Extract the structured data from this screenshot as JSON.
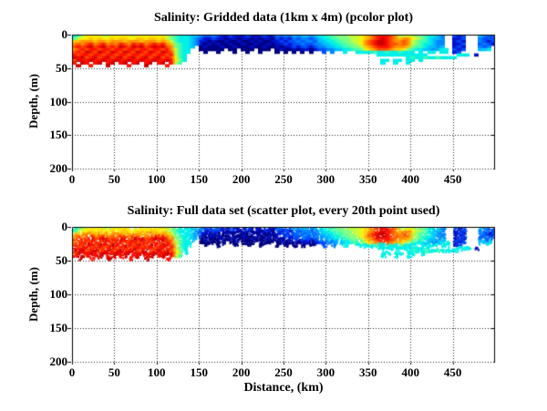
{
  "chart_data": [
    {
      "type": "heatmap",
      "render": "pcolor",
      "title": "Salinity: Gridded data (1km x 4m) (pcolor plot)",
      "xlabel": "",
      "ylabel": "Depth, (m)",
      "xlim": [
        0,
        500
      ],
      "ylim": [
        0,
        200
      ],
      "y_axis_direction": "reverse",
      "xticks": [
        0,
        50,
        100,
        150,
        200,
        250,
        300,
        350,
        400,
        450
      ],
      "yticks": [
        0,
        50,
        100,
        150,
        200
      ],
      "grid": "dotted",
      "legend": "none",
      "colormap": "jet",
      "field": "salinity_field"
    },
    {
      "type": "scatter",
      "render": "scatter",
      "title": "Salinity: Full data set (scatter plot, every 20th point used)",
      "xlabel": "Distance, (km)",
      "ylabel": "Depth, (m)",
      "xlim": [
        0,
        500
      ],
      "ylim": [
        0,
        200
      ],
      "y_axis_direction": "reverse",
      "xticks": [
        0,
        50,
        100,
        150,
        200,
        250,
        300,
        350,
        400,
        450
      ],
      "yticks": [
        0,
        50,
        100,
        150,
        200
      ],
      "grid": "dotted",
      "legend": "none",
      "colormap": "jet",
      "field": "salinity_field"
    }
  ],
  "salinity_field": {
    "description": "Jet-colormapped salinity section shared by both subplots; one letter per 5 km x 4 m cell, '.' = no data (white)",
    "x_start_km": 0,
    "x_bin_km": 5,
    "depth_start_m": 0,
    "depth_bin_m": 4,
    "no_data": ".",
    "palette": {
      "a": "#000080",
      "b": "#0013CC",
      "c": "#0050FF",
      "d": "#0087FF",
      "e": "#00C0FF",
      "f": "#00F0E8",
      "g": "#40FFB0",
      "h": "#80FF80",
      "i": "#C8FF38",
      "j": "#FFF000",
      "k": "#FFC400",
      "l": "#FF9000",
      "m": "#FF5000",
      "n": "#FF1000",
      "o": "#CC0000"
    },
    "rows": [
      "fgijjjjiijjjjjijjjjjjjihgfffeedccdcbbcbbbcbbbcbbdcdcedeedeffgghhhiiijklmnnnmliijihhgffed..cbc...edcc",
      "gijjkjkjjkjkkjjkkjkkjkihgfffedcbbcbbabbabbababbacbcbdcddcdeffgghhhiijklmnonmlklljihgfeed..bbc...dccc",
      "kklllkllklllklllklllklkigfffedbbabaabaabaababaabbcbccdcddceeffgghhiijlmnoonmllmlihggfedd..bcb...dcbc",
      "lmlmnlmnlmlnmlnmnlmnmnlkhgffedbababaabaabaabaababbcbccdccddeeffgghhijlmnoonmmlmlihgffedd..bbc...cdcb",
      "mnmnomnomnmonmonomnonomlhgffe.abaaabaabaaabaabaababbcbccbcddeeffgghhiklmnnnmlllkhggfeede..bcb...dcd.",
      "lmnmnnmnnmnnmnnmnnmnnmnligff..aaaaaa.aa.aaa.aaa.abaababbabccddeeffgghjklmmmlkkjhgffeedeff.cbc...eef.",
      "mnmonmonmonmonmonmonmonmigff...a..a...a..a..a...a.a.a.a.a..c.d..f..ffffgffgffgfff.f.ff.ff.bc........",
      "nmnnmnnmnnmnnmnnmnnmnnmnigf.............................................ffffffffffff.......fff.b.........",
      "onomnomnomnomnomnomnomnmjgf....................................................fgffgffgffff..................",
      "monnonnonnonnonnonnonnonjhf..............................................ff.ff.ff.f....................",
      "n.on.no.no.no.no.no.no.nig...............................................f..f..f......................",
      ".o..n...o....n...o....n..........................................................................."
    ]
  }
}
